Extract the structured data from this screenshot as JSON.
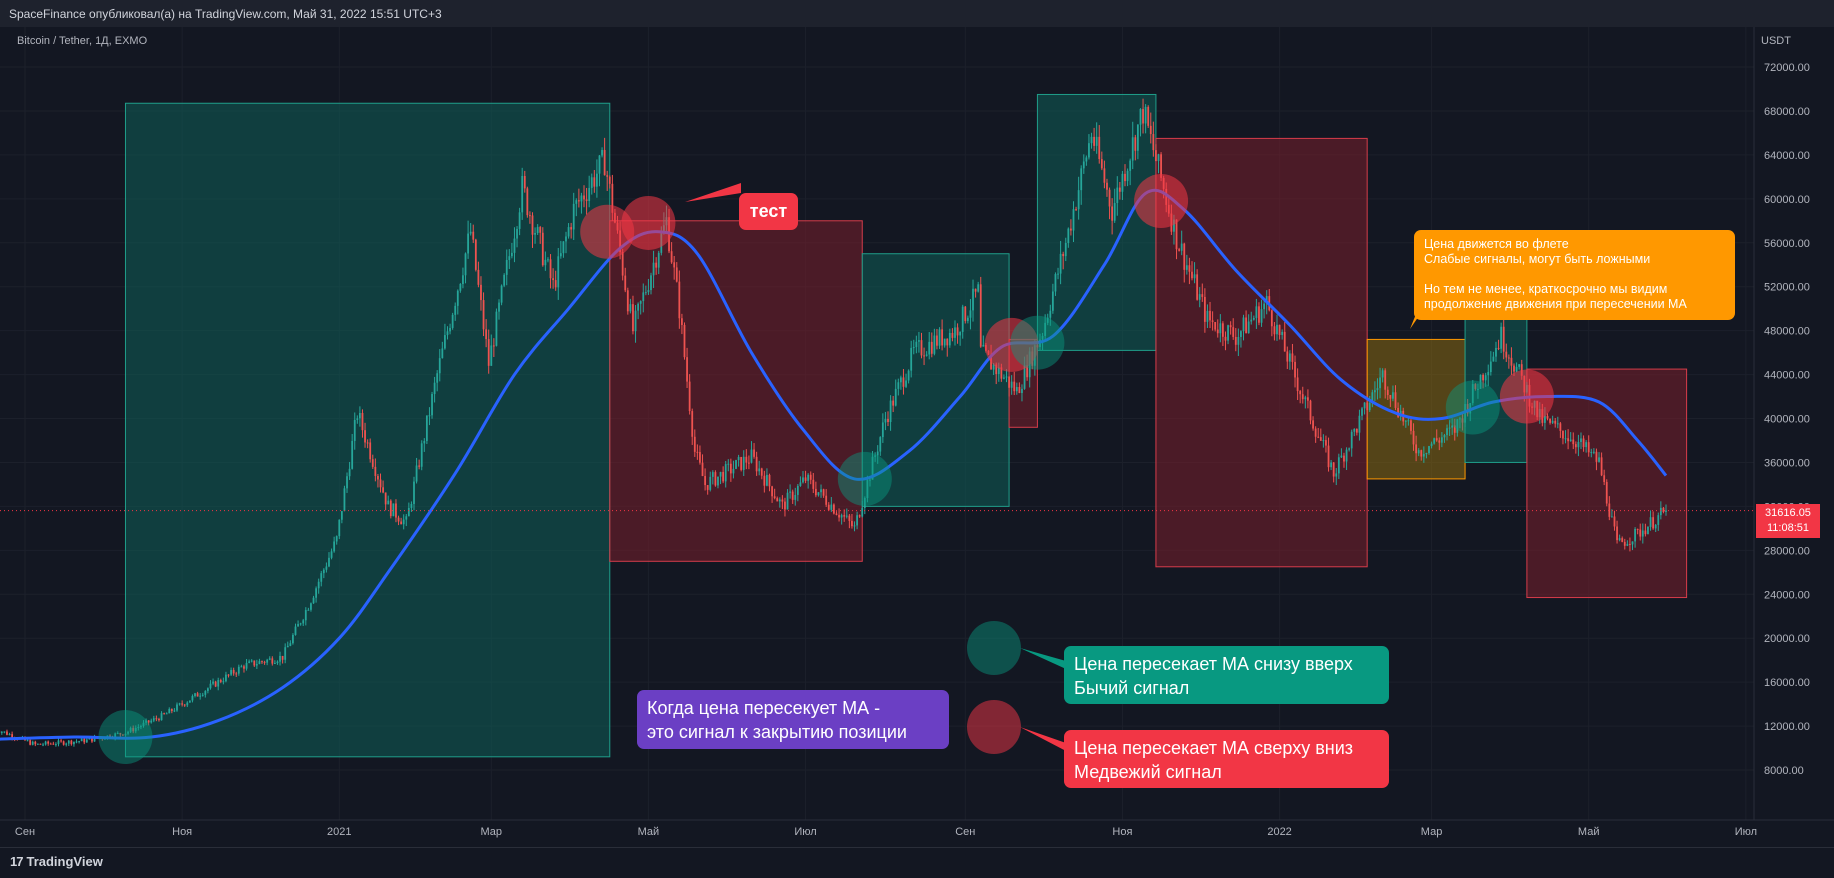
{
  "header": {
    "publisher_line": "SpaceFinance опубликовал(а) на TradingView.com, Май 31, 2022 15:51 UTC+3"
  },
  "chart": {
    "symbol": "Bitcoin / Tether, 1Д, EXMO",
    "currency": "USDT"
  },
  "price_tag": {
    "price": "31616.05",
    "countdown": "11:08:51"
  },
  "callouts": {
    "bull": [
      "Цена пересекает МА снизу вверх",
      "Бычий сигнал"
    ],
    "bear": [
      "Цена пересекает МА сверху вниз",
      "Медвежий сигнал"
    ],
    "close": [
      "Когда цена пересекует МА -",
      "это сигнал к закрытию позиции"
    ],
    "test": "тест",
    "flat": [
      "Цена движется во флете",
      "Слабые сигналы, могут быть ложными",
      "",
      "Но тем не менее, краткосрочно мы видим",
      "продолжение движения при пересечении МА"
    ]
  },
  "footer": {
    "brand": "TradingView"
  },
  "colors": {
    "bg": "#131722",
    "bull": "#089981",
    "bear": "#f23645",
    "ma": "#2962ff",
    "flat": "#ff9800",
    "purple": "#6b3fc4"
  },
  "chart_data": {
    "type": "candlestick",
    "x_ticks": [
      "Сен",
      "Ноя",
      "2021",
      "Мар",
      "Май",
      "Июл",
      "Сен",
      "Ноя",
      "2022",
      "Мар",
      "Май",
      "Июл"
    ],
    "y_ticks": [
      8000,
      12000,
      16000,
      20000,
      24000,
      28000,
      32000,
      36000,
      40000,
      44000,
      48000,
      52000,
      56000,
      60000,
      64000,
      68000,
      72000
    ],
    "y_tick_labels": [
      "8000.00",
      "12000.00",
      "16000.00",
      "20000.00",
      "24000.00",
      "28000.00",
      "32000.00",
      "36000.00",
      "40000.00",
      "44000.00",
      "48000.00",
      "52000.00",
      "56000.00",
      "60000.00",
      "64000.00",
      "68000.00",
      "72000.00"
    ],
    "y_range": [
      4000,
      76000
    ],
    "last_price": 31616.05,
    "price_path": [
      [
        "2020-08-20",
        11800
      ],
      [
        "2020-09-05",
        10300
      ],
      [
        "2020-09-25",
        10700
      ],
      [
        "2020-10-10",
        11400
      ],
      [
        "2020-10-25",
        13000
      ],
      [
        "2020-11-10",
        15300
      ],
      [
        "2020-11-25",
        17500
      ],
      [
        "2020-12-10",
        18300
      ],
      [
        "2020-12-20",
        23000
      ],
      [
        "2020-12-31",
        29000
      ],
      [
        "2021-01-08",
        40500
      ],
      [
        "2021-01-20",
        32000
      ],
      [
        "2021-01-27",
        30500
      ],
      [
        "2021-02-08",
        44000
      ],
      [
        "2021-02-21",
        57000
      ],
      [
        "2021-02-28",
        45000
      ],
      [
        "2021-03-13",
        61000
      ],
      [
        "2021-03-25",
        52000
      ],
      [
        "2021-04-02",
        59000
      ],
      [
        "2021-04-14",
        63500
      ],
      [
        "2021-04-25",
        48000
      ],
      [
        "2021-05-08",
        58000
      ],
      [
        "2021-05-13",
        50000
      ],
      [
        "2021-05-19",
        37000
      ],
      [
        "2021-05-23",
        34000
      ],
      [
        "2021-06-10",
        36500
      ],
      [
        "2021-06-22",
        32000
      ],
      [
        "2021-07-01",
        34500
      ],
      [
        "2021-07-20",
        30000
      ],
      [
        "2021-08-01",
        40000
      ],
      [
        "2021-08-12",
        46000
      ],
      [
        "2021-08-28",
        48000
      ],
      [
        "2021-09-06",
        51500
      ],
      [
        "2021-09-07",
        46000
      ],
      [
        "2021-09-21",
        42500
      ],
      [
        "2021-10-01",
        48000
      ],
      [
        "2021-10-10",
        56000
      ],
      [
        "2021-10-20",
        66000
      ],
      [
        "2021-10-28",
        59000
      ],
      [
        "2021-11-09",
        68000
      ],
      [
        "2021-11-22",
        56500
      ],
      [
        "2021-12-04",
        49000
      ],
      [
        "2021-12-15",
        47500
      ],
      [
        "2021-12-27",
        50500
      ],
      [
        "2022-01-10",
        42000
      ],
      [
        "2022-01-22",
        35000
      ],
      [
        "2022-02-10",
        44000
      ],
      [
        "2022-02-24",
        37000
      ],
      [
        "2022-03-10",
        39000
      ],
      [
        "2022-03-28",
        47500
      ],
      [
        "2022-04-12",
        40000
      ],
      [
        "2022-04-26",
        38000
      ],
      [
        "2022-05-05",
        36000
      ],
      [
        "2022-05-12",
        28500
      ],
      [
        "2022-05-20",
        29500
      ],
      [
        "2022-05-31",
        31616
      ]
    ],
    "ma_path": [
      [
        "2020-08-20",
        10800
      ],
      [
        "2020-09-20",
        11000
      ],
      [
        "2020-10-20",
        11000
      ],
      [
        "2020-11-15",
        12500
      ],
      [
        "2020-12-10",
        15500
      ],
      [
        "2021-01-01",
        20000
      ],
      [
        "2021-01-20",
        26000
      ],
      [
        "2021-02-15",
        35000
      ],
      [
        "2021-03-10",
        44000
      ],
      [
        "2021-03-31",
        50000
      ],
      [
        "2021-04-20",
        55500
      ],
      [
        "2021-05-05",
        57000
      ],
      [
        "2021-05-20",
        55000
      ],
      [
        "2021-06-10",
        46000
      ],
      [
        "2021-06-30",
        39000
      ],
      [
        "2021-07-20",
        34500
      ],
      [
        "2021-08-10",
        37000
      ],
      [
        "2021-08-30",
        42000
      ],
      [
        "2021-09-15",
        46500
      ],
      [
        "2021-10-05",
        47500
      ],
      [
        "2021-10-25",
        54000
      ],
      [
        "2021-11-10",
        60500
      ],
      [
        "2021-11-25",
        59000
      ],
      [
        "2021-12-15",
        53500
      ],
      [
        "2022-01-05",
        48500
      ],
      [
        "2022-01-25",
        43500
      ],
      [
        "2022-02-15",
        40500
      ],
      [
        "2022-03-05",
        40000
      ],
      [
        "2022-03-25",
        41500
      ],
      [
        "2022-04-15",
        42000
      ],
      [
        "2022-05-05",
        41500
      ],
      [
        "2022-05-20",
        38000
      ],
      [
        "2022-05-31",
        34800
      ]
    ],
    "zones": [
      {
        "type": "bull",
        "x0": "2020-10-10",
        "x1": "2021-04-16",
        "y0": 9200,
        "y1": 68700
      },
      {
        "type": "bear",
        "x0": "2021-04-16",
        "x1": "2021-07-23",
        "y0": 27000,
        "y1": 58000
      },
      {
        "type": "bull",
        "x0": "2021-07-23",
        "x1": "2021-09-18",
        "y0": 32000,
        "y1": 55000
      },
      {
        "type": "bear",
        "x0": "2021-09-18",
        "x1": "2021-09-29",
        "y0": 39200,
        "y1": 47200
      },
      {
        "type": "bull",
        "x0": "2021-09-29",
        "x1": "2021-11-14",
        "y0": 46200,
        "y1": 69500
      },
      {
        "type": "bear",
        "x0": "2021-11-14",
        "x1": "2022-02-04",
        "y0": 26500,
        "y1": 65500
      },
      {
        "type": "flat",
        "x0": "2022-02-04",
        "x1": "2022-03-14",
        "y0": 34500,
        "y1": 47200
      },
      {
        "type": "bull",
        "x0": "2022-03-14",
        "x1": "2022-04-07",
        "y0": 36000,
        "y1": 49200
      },
      {
        "type": "bear",
        "x0": "2022-04-07",
        "x1": "2022-06-08",
        "y0": 23700,
        "y1": 44500
      }
    ],
    "signals": [
      {
        "type": "bull",
        "date": "2020-10-10",
        "price": 11000
      },
      {
        "type": "bear",
        "date": "2021-04-15",
        "price": 57000
      },
      {
        "type": "bear",
        "date": "2021-05-01",
        "price": 57800
      },
      {
        "type": "bull",
        "date": "2021-07-24",
        "price": 34500
      },
      {
        "type": "bear",
        "date": "2021-09-19",
        "price": 46700
      },
      {
        "type": "bull",
        "date": "2021-09-29",
        "price": 46900
      },
      {
        "type": "bear",
        "date": "2021-11-16",
        "price": 59800
      },
      {
        "type": "bull",
        "date": "2022-03-17",
        "price": 41000
      },
      {
        "type": "bear",
        "date": "2022-04-07",
        "price": 42000
      }
    ]
  }
}
